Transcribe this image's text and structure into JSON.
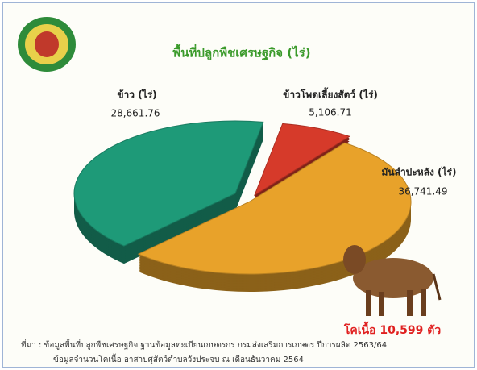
{
  "chart_data": {
    "type": "pie",
    "title": "พื้นที่ปลูกพืชเศรษฐกิจ (ไร่)",
    "categories": [
      "ข้าวโพดเลี้ยงสัตว์ (ไร่)",
      "มันสำปะหลัง (ไร่)",
      "ข้าว (ไร่)"
    ],
    "values": [
      5106.71,
      36741.49,
      28661.76
    ],
    "value_labels": [
      "5,106.71",
      "36,741.49",
      "28,661.76"
    ],
    "colors": [
      "#d63a2a",
      "#e8a22a",
      "#1e9a78"
    ],
    "annotation": "โคเนื้อ 10,599 ตัว",
    "source": [
      "ที่มา :  ข้อมูลพื้นที่ปลูกพืชเศรษฐกิจ ฐานข้อมูลทะเบียนเกษตรกร กรมส่งเสริมการเกษตร ปีการผลิต 2563/64",
      "ข้อมูลจำนวนโคเนื้อ อาสาปศุสัตว์ตำบลวังประจบ ณ เดือนธันวาคม 2564"
    ]
  }
}
